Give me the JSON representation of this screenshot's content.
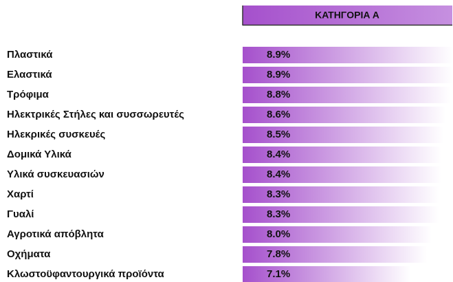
{
  "chart_data": {
    "type": "bar",
    "orientation": "horizontal",
    "title": "ΚΑΤΗΓΟΡΙΑ Α",
    "categories": [
      "Πλαστικά",
      "Ελαστικά",
      "Τρόφιμα",
      "Ηλεκτρικές Στήλες και συσσωρευτές",
      "Ηλεκρικές συσκευές",
      "Δομικά Υλικά",
      "Υλικά συσκευασιών",
      "Χαρτί",
      "Γυαλί",
      "Αγροτικά απόβλητα",
      "Οχήματα",
      "Κλωστοϋφαντουργικά προϊόντα"
    ],
    "values": [
      8.9,
      8.9,
      8.8,
      8.6,
      8.5,
      8.4,
      8.4,
      8.3,
      8.3,
      8.0,
      7.8,
      7.1
    ],
    "value_labels": [
      "8.9%",
      "8.9%",
      "8.8%",
      "8.6%",
      "8.5%",
      "8.4%",
      "8.4%",
      "8.3%",
      "8.3%",
      "8.0%",
      "7.8%",
      "7.1%"
    ],
    "color": "#a550cc"
  }
}
